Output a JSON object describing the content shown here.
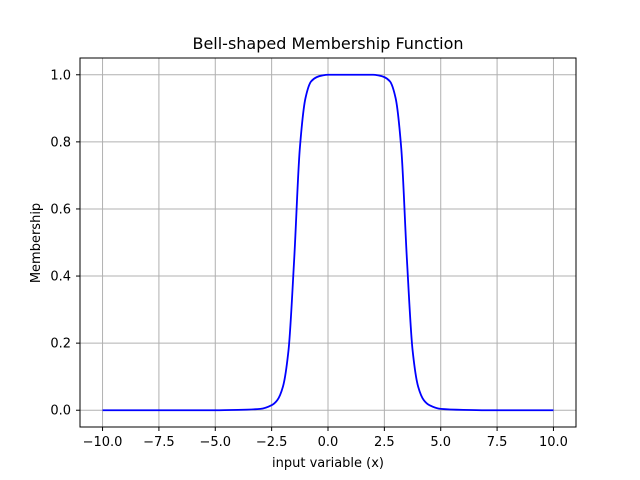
{
  "chart_data": {
    "type": "line",
    "title": "Bell-shaped Membership Function",
    "xlabel": "input variable (x)",
    "ylabel": "Membership",
    "xlim": [
      -11,
      11
    ],
    "ylim": [
      -0.05,
      1.05
    ],
    "grid": true,
    "xticks": [
      -10,
      -7.5,
      -5,
      -2.5,
      0,
      2.5,
      5,
      7.5,
      10
    ],
    "xtick_labels": [
      "−10.0",
      "−7.5",
      "−5.0",
      "−2.5",
      "0.0",
      "2.5",
      "5.0",
      "7.5",
      "10.0"
    ],
    "yticks": [
      0,
      0.2,
      0.4,
      0.6,
      0.8,
      1.0
    ],
    "ytick_labels": [
      "0.0",
      "0.2",
      "0.4",
      "0.6",
      "0.8",
      "1.0"
    ],
    "series": [
      {
        "color": "#0000ff",
        "x": [
          -10,
          -8,
          -6,
          -5,
          -4,
          -3,
          -2.5,
          -2.25,
          -2,
          -1.75,
          -1.5,
          -1.25,
          -1,
          -0.75,
          -0.5,
          -0.25,
          0,
          0.5,
          1,
          1.5,
          2,
          2.25,
          2.5,
          2.75,
          3,
          3.25,
          3.5,
          3.75,
          4,
          4.25,
          4.5,
          5,
          6,
          7,
          8,
          10
        ],
        "y": [
          0,
          0,
          0,
          0,
          0.001,
          0.004,
          0.015,
          0.03,
          0.07,
          0.18,
          0.45,
          0.78,
          0.93,
          0.98,
          0.993,
          0.998,
          1.0,
          1.0,
          1.0,
          1.0,
          1.0,
          0.998,
          0.993,
          0.98,
          0.93,
          0.78,
          0.45,
          0.18,
          0.07,
          0.03,
          0.015,
          0.004,
          0.001,
          0,
          0,
          0
        ]
      }
    ]
  }
}
